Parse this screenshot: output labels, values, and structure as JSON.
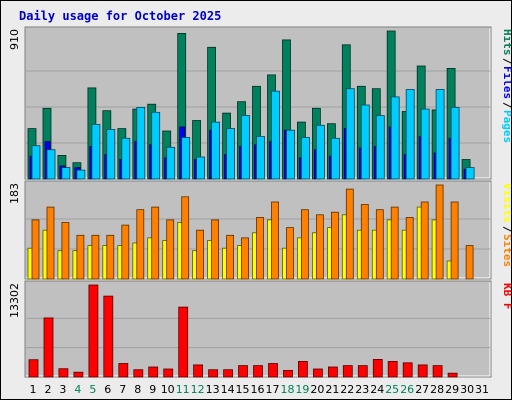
{
  "title": "Daily usage for October 2025",
  "colors": {
    "background": "#ececec",
    "panel": "#c0c0c0",
    "title": "#0000cc",
    "hits": "#00805c",
    "files": "#0000ff",
    "pages": "#00ccff",
    "visits": "#ffff00",
    "sites": "#ff8000",
    "kbytes": "#ff0000",
    "weekend": "#00805c",
    "weekday": "#000000"
  },
  "chart_data": [
    {
      "type": "bar",
      "panel": "hits-files-pages",
      "ylabel_max": "910",
      "ylim": [
        0,
        910
      ],
      "legend": [
        {
          "text": "Hits",
          "color_key": "hits"
        },
        {
          "text": "/",
          "color_key": "weekday"
        },
        {
          "text": "Files",
          "color_key": "files"
        },
        {
          "text": "/",
          "color_key": "weekday"
        },
        {
          "text": "Pages",
          "color_key": "pages"
        }
      ],
      "categories": [
        "1",
        "2",
        "3",
        "4",
        "5",
        "6",
        "7",
        "8",
        "9",
        "10",
        "11",
        "12",
        "13",
        "14",
        "15",
        "16",
        "17",
        "18",
        "19",
        "20",
        "21",
        "22",
        "23",
        "24",
        "25",
        "26",
        "27",
        "28",
        "29",
        "30",
        "31"
      ],
      "series": [
        {
          "name": "Hits",
          "color_key": "hits",
          "values": [
            310,
            435,
            145,
            100,
            560,
            420,
            310,
            430,
            460,
            295,
            895,
            360,
            810,
            405,
            475,
            570,
            640,
            855,
            350,
            435,
            340,
            825,
            570,
            555,
            910,
            415,
            695,
            425,
            680,
            120,
            0
          ]
        },
        {
          "name": "Files",
          "color_key": "files",
          "values": [
            140,
            230,
            80,
            70,
            200,
            150,
            120,
            230,
            210,
            130,
            320,
            120,
            300,
            150,
            200,
            210,
            230,
            300,
            130,
            180,
            140,
            310,
            190,
            200,
            320,
            150,
            260,
            160,
            250,
            60,
            0
          ]
        },
        {
          "name": "Pages",
          "color_key": "pages",
          "values": [
            205,
            180,
            70,
            55,
            335,
            305,
            250,
            440,
            410,
            195,
            255,
            135,
            350,
            310,
            390,
            262,
            540,
            300,
            255,
            330,
            250,
            555,
            455,
            390,
            505,
            550,
            430,
            550,
            440,
            70,
            0
          ]
        }
      ]
    },
    {
      "type": "bar",
      "panel": "visits-sites",
      "ylabel_max": "183",
      "ylim": [
        0,
        183
      ],
      "legend": [
        {
          "text": "Visits",
          "color_key": "visits"
        },
        {
          "text": "/",
          "color_key": "weekday"
        },
        {
          "text": "Sites",
          "color_key": "sites"
        }
      ],
      "categories": [
        "1",
        "2",
        "3",
        "4",
        "5",
        "6",
        "7",
        "8",
        "9",
        "10",
        "11",
        "12",
        "13",
        "14",
        "15",
        "16",
        "17",
        "18",
        "19",
        "20",
        "21",
        "22",
        "23",
        "24",
        "25",
        "26",
        "27",
        "28",
        "29",
        "30",
        "31"
      ],
      "series": [
        {
          "name": "Visits",
          "color_key": "visits",
          "values": [
            60,
            95,
            55,
            55,
            65,
            65,
            65,
            70,
            80,
            75,
            110,
            55,
            75,
            60,
            65,
            90,
            115,
            60,
            80,
            90,
            100,
            125,
            95,
            95,
            115,
            95,
            140,
            115,
            35,
            0,
            0
          ]
        },
        {
          "name": "Sites",
          "color_key": "sites",
          "values": [
            115,
            140,
            110,
            85,
            85,
            85,
            105,
            135,
            140,
            115,
            160,
            95,
            115,
            85,
            80,
            120,
            150,
            100,
            135,
            125,
            130,
            175,
            145,
            135,
            140,
            120,
            150,
            183,
            150,
            65,
            0
          ]
        }
      ]
    },
    {
      "type": "bar",
      "panel": "kbytes",
      "ylabel_max": "13302",
      "ylim": [
        0,
        13302
      ],
      "legend": [
        {
          "text": "KB F",
          "color_key": "kbytes"
        }
      ],
      "categories": [
        "1",
        "2",
        "3",
        "4",
        "5",
        "6",
        "7",
        "8",
        "9",
        "10",
        "11",
        "12",
        "13",
        "14",
        "15",
        "16",
        "17",
        "18",
        "19",
        "20",
        "21",
        "22",
        "23",
        "24",
        "25",
        "26",
        "27",
        "28",
        "29",
        "30",
        "31"
      ],
      "series": [
        {
          "name": "KB F",
          "color_key": "kbytes",
          "values": [
            2500,
            8550,
            1200,
            700,
            13302,
            11700,
            1950,
            1050,
            1450,
            1150,
            10100,
            1750,
            1050,
            1050,
            1650,
            1650,
            1950,
            950,
            2250,
            1150,
            1450,
            1650,
            1650,
            2550,
            2250,
            2050,
            1750,
            1650,
            550,
            0,
            0
          ]
        }
      ]
    }
  ],
  "x_labels": [
    {
      "text": "1",
      "weekend": false
    },
    {
      "text": "2",
      "weekend": false
    },
    {
      "text": "3",
      "weekend": false
    },
    {
      "text": "4",
      "weekend": true
    },
    {
      "text": "5",
      "weekend": true
    },
    {
      "text": "6",
      "weekend": false
    },
    {
      "text": "7",
      "weekend": false
    },
    {
      "text": "8",
      "weekend": false
    },
    {
      "text": "9",
      "weekend": false
    },
    {
      "text": "10",
      "weekend": false
    },
    {
      "text": "11",
      "weekend": true
    },
    {
      "text": "12",
      "weekend": true
    },
    {
      "text": "13",
      "weekend": false
    },
    {
      "text": "14",
      "weekend": false
    },
    {
      "text": "15",
      "weekend": false
    },
    {
      "text": "16",
      "weekend": false
    },
    {
      "text": "17",
      "weekend": false
    },
    {
      "text": "18",
      "weekend": true
    },
    {
      "text": "19",
      "weekend": true
    },
    {
      "text": "20",
      "weekend": false
    },
    {
      "text": "21",
      "weekend": false
    },
    {
      "text": "22",
      "weekend": false
    },
    {
      "text": "23",
      "weekend": false
    },
    {
      "text": "24",
      "weekend": false
    },
    {
      "text": "25",
      "weekend": true
    },
    {
      "text": "26",
      "weekend": true
    },
    {
      "text": "27",
      "weekend": false
    },
    {
      "text": "28",
      "weekend": false
    },
    {
      "text": "29",
      "weekend": false
    },
    {
      "text": "30",
      "weekend": false
    },
    {
      "text": "31",
      "weekend": false
    }
  ]
}
